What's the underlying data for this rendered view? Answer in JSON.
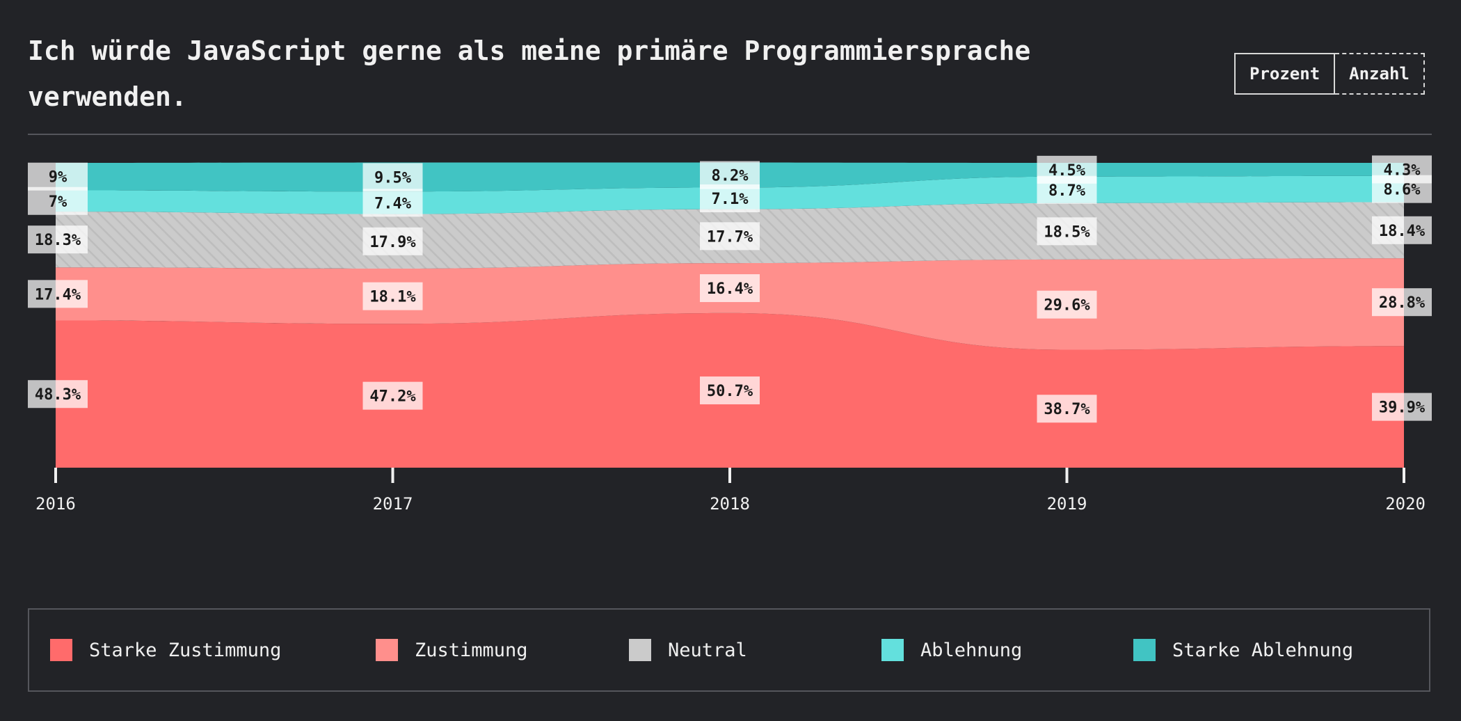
{
  "title": "Ich würde JavaScript gerne als meine primäre Programmiersprache verwenden.",
  "toggle": {
    "percent_label": "Prozent",
    "count_label": "Anzahl",
    "active": "percent"
  },
  "chart_data": {
    "type": "area",
    "stacked": true,
    "normalized_percent": true,
    "x": [
      "2016",
      "2017",
      "2018",
      "2019",
      "2020"
    ],
    "ylim": [
      0,
      100
    ],
    "grid": false,
    "series": [
      {
        "name": "Starke Zustimmung",
        "color": "#ff6b6b",
        "values": [
          48.3,
          47.2,
          50.7,
          38.7,
          39.9
        ]
      },
      {
        "name": "Zustimmung",
        "color": "#ff8f8c",
        "values": [
          17.4,
          18.1,
          16.4,
          29.6,
          28.8
        ]
      },
      {
        "name": "Neutral",
        "color": "#cbcbcb",
        "pattern": "hatched",
        "values": [
          18.3,
          17.9,
          17.7,
          18.5,
          18.4
        ]
      },
      {
        "name": "Ablehnung",
        "color": "#63e0dd",
        "values": [
          7,
          7.4,
          7.1,
          8.7,
          8.6
        ]
      },
      {
        "name": "Starke Ablehnung",
        "color": "#41c4c3",
        "values": [
          9,
          9.5,
          8.2,
          4.5,
          4.3
        ]
      }
    ],
    "value_labels": [
      [
        "48.3%",
        "47.2%",
        "50.7%",
        "38.7%",
        "39.9%"
      ],
      [
        "17.4%",
        "18.1%",
        "16.4%",
        "29.6%",
        "28.8%"
      ],
      [
        "18.3%",
        "17.9%",
        "17.7%",
        "18.5%",
        "18.4%"
      ],
      [
        "7%",
        "7.4%",
        "7.1%",
        "8.7%",
        "8.6%"
      ],
      [
        "9%",
        "9.5%",
        "8.2%",
        "4.5%",
        "4.3%"
      ]
    ]
  }
}
